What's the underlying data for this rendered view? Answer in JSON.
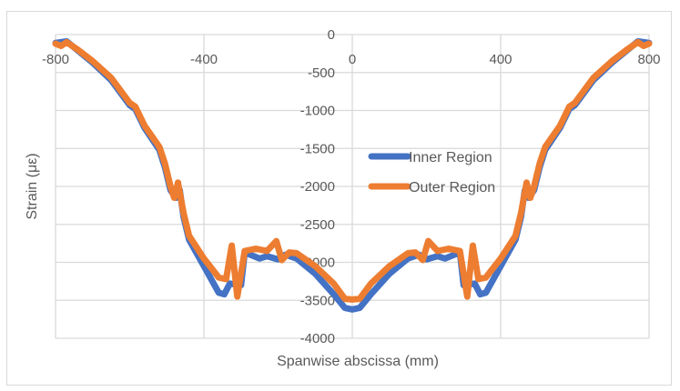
{
  "chart_data": {
    "type": "line",
    "title": "",
    "xlabel": "Spanwise abscissa (mm)",
    "ylabel": "Strain (με)",
    "xlim": [
      -800,
      800
    ],
    "ylim": [
      -4000,
      0
    ],
    "x_ticks": [
      "-800",
      "-400",
      "0",
      "400",
      "800"
    ],
    "y_ticks": [
      "0",
      "-500",
      "-1000",
      "-1500",
      "-2000",
      "-2500",
      "-3000",
      "-3500",
      "-4000"
    ],
    "x_tick_values": [
      -800,
      -400,
      0,
      400,
      800
    ],
    "y_tick_values": [
      0,
      -500,
      -1000,
      -1500,
      -2000,
      -2500,
      -3000,
      -3500,
      -4000
    ],
    "grid": true,
    "legend_position": "center-right inside plot",
    "series": [
      {
        "name": "Inner Region",
        "color": "#4472C4",
        "x": [
          -800,
          -785,
          -770,
          -740,
          -700,
          -650,
          -600,
          -585,
          -560,
          -520,
          -505,
          -490,
          -475,
          -465,
          -455,
          -440,
          -400,
          -360,
          -345,
          -330,
          -300,
          -290,
          -250,
          -230,
          -200,
          -180,
          -150,
          -100,
          -50,
          -20,
          0,
          20,
          50,
          100,
          150,
          180,
          200,
          230,
          250,
          290,
          300,
          330,
          345,
          360,
          400,
          440,
          455,
          465,
          475,
          490,
          505,
          520,
          560,
          585,
          600,
          650,
          700,
          740,
          770,
          785,
          800
        ],
        "y": [
          -110,
          -100,
          -90,
          -210,
          -370,
          -600,
          -930,
          -980,
          -1230,
          -1520,
          -1750,
          -2050,
          -2150,
          -2050,
          -2400,
          -2700,
          -3050,
          -3400,
          -3420,
          -3280,
          -3300,
          -2870,
          -2950,
          -2920,
          -2960,
          -2900,
          -2950,
          -3150,
          -3420,
          -3600,
          -3620,
          -3600,
          -3420,
          -3150,
          -2950,
          -2900,
          -2960,
          -2920,
          -2950,
          -2870,
          -3300,
          -3280,
          -3420,
          -3400,
          -3050,
          -2700,
          -2400,
          -2050,
          -2150,
          -2050,
          -1750,
          -1520,
          -1230,
          -980,
          -930,
          -600,
          -370,
          -210,
          -90,
          -100,
          -110
        ]
      },
      {
        "name": "Outer Region",
        "color": "#ED7D31",
        "x": [
          -800,
          -785,
          -770,
          -740,
          -700,
          -650,
          -600,
          -585,
          -560,
          -520,
          -505,
          -490,
          -480,
          -470,
          -455,
          -440,
          -400,
          -360,
          -340,
          -325,
          -310,
          -290,
          -260,
          -230,
          -205,
          -190,
          -170,
          -150,
          -100,
          -50,
          -20,
          0,
          20,
          50,
          100,
          150,
          170,
          190,
          205,
          230,
          260,
          290,
          310,
          325,
          340,
          360,
          400,
          440,
          455,
          470,
          480,
          490,
          505,
          520,
          560,
          585,
          600,
          650,
          700,
          740,
          770,
          785,
          800
        ],
        "y": [
          -120,
          -150,
          -100,
          -200,
          -350,
          -570,
          -900,
          -950,
          -1200,
          -1480,
          -1700,
          -2000,
          -2150,
          -1950,
          -2350,
          -2650,
          -2950,
          -3200,
          -3220,
          -2780,
          -3450,
          -2850,
          -2820,
          -2850,
          -2720,
          -2970,
          -2870,
          -2880,
          -3050,
          -3280,
          -3480,
          -3490,
          -3480,
          -3280,
          -3050,
          -2880,
          -2870,
          -2970,
          -2720,
          -2850,
          -2820,
          -2850,
          -3450,
          -2780,
          -3220,
          -3200,
          -2950,
          -2650,
          -2350,
          -1950,
          -2150,
          -2000,
          -1700,
          -1480,
          -1200,
          -950,
          -900,
          -570,
          -350,
          -200,
          -100,
          -150,
          -120
        ]
      }
    ]
  },
  "labels": {
    "xlabel": "Spanwise abscissa (mm)",
    "ylabel": "Strain (με)",
    "legend_inner": "Inner Region",
    "legend_outer": "Outer Region"
  }
}
